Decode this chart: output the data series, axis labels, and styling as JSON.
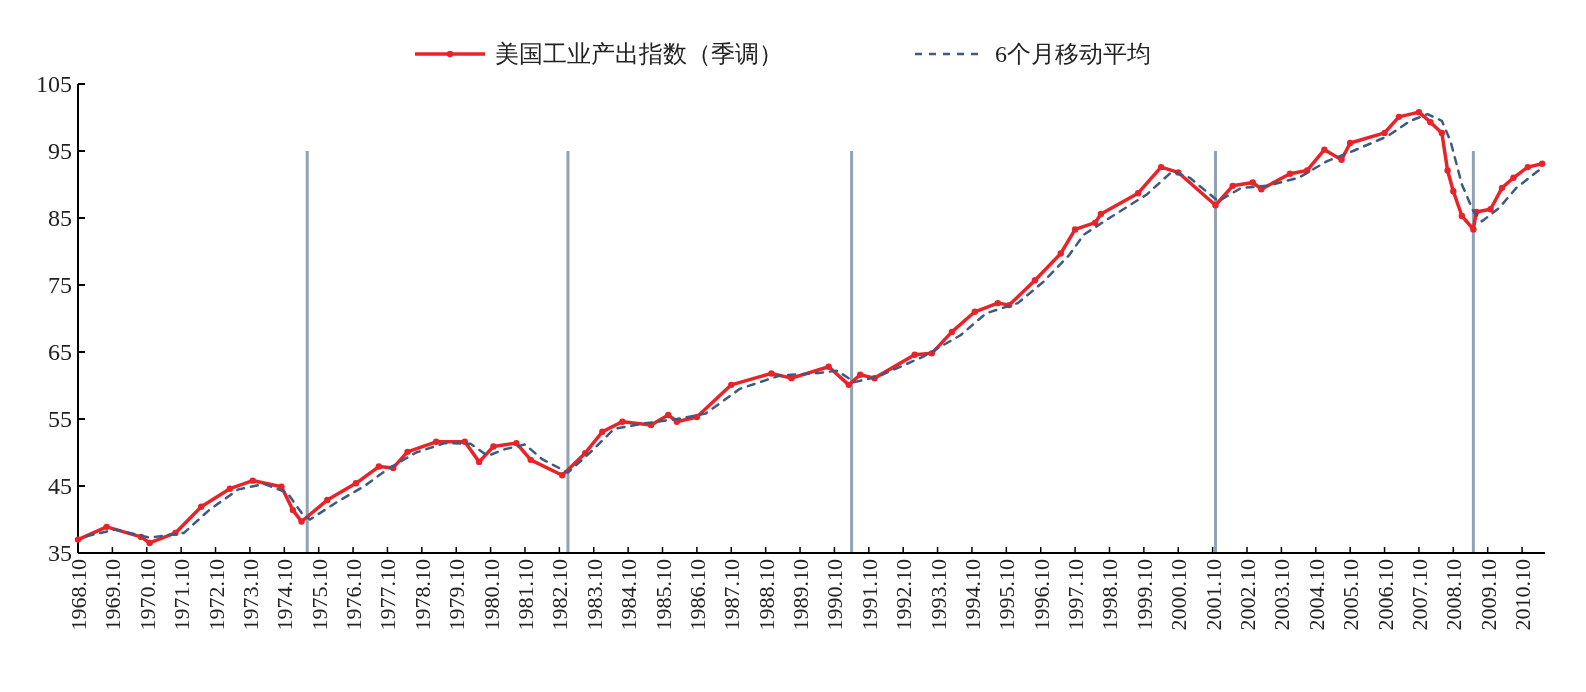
{
  "chart_data": {
    "type": "line",
    "xlim": [
      "1968-10",
      "2011-06"
    ],
    "xticks": [
      {
        "value": "1968-10",
        "label": "1968.10"
      },
      {
        "value": "1969-10",
        "label": "1969.10"
      },
      {
        "value": "1970-10",
        "label": "1970.10"
      },
      {
        "value": "1971-10",
        "label": "1971.10"
      },
      {
        "value": "1972-10",
        "label": "1972.10"
      },
      {
        "value": "1973-10",
        "label": "1973.10"
      },
      {
        "value": "1974-10",
        "label": "1974.10"
      },
      {
        "value": "1975-10",
        "label": "1975.10"
      },
      {
        "value": "1976-10",
        "label": "1976.10"
      },
      {
        "value": "1977-10",
        "label": "1977.10"
      },
      {
        "value": "1978-10",
        "label": "1978.10"
      },
      {
        "value": "1979-10",
        "label": "1979.10"
      },
      {
        "value": "1980-10",
        "label": "1980.10"
      },
      {
        "value": "1981-10",
        "label": "1981.10"
      },
      {
        "value": "1982-10",
        "label": "1982.10"
      },
      {
        "value": "1983-10",
        "label": "1983.10"
      },
      {
        "value": "1984-10",
        "label": "1984.10"
      },
      {
        "value": "1985-10",
        "label": "1985.10"
      },
      {
        "value": "1986-10",
        "label": "1986.10"
      },
      {
        "value": "1987-10",
        "label": "1987.10"
      },
      {
        "value": "1988-10",
        "label": "1988.10"
      },
      {
        "value": "1989-10",
        "label": "1989.10"
      },
      {
        "value": "1990-10",
        "label": "1990.10"
      },
      {
        "value": "1991-10",
        "label": "1991.10"
      },
      {
        "value": "1992-10",
        "label": "1992.10"
      },
      {
        "value": "1993-10",
        "label": "1993.10"
      },
      {
        "value": "1994-10",
        "label": "1994.10"
      },
      {
        "value": "1995-10",
        "label": "1995.10"
      },
      {
        "value": "1996-10",
        "label": "1996.10"
      },
      {
        "value": "1997-10",
        "label": "1997.10"
      },
      {
        "value": "1998-10",
        "label": "1998.10"
      },
      {
        "value": "1999-10",
        "label": "1999.10"
      },
      {
        "value": "2000-10",
        "label": "2000.10"
      },
      {
        "value": "2001-10",
        "label": "2001.10"
      },
      {
        "value": "2002-10",
        "label": "2002.10"
      },
      {
        "value": "2003-10",
        "label": "2003.10"
      },
      {
        "value": "2004-10",
        "label": "2004.10"
      },
      {
        "value": "2005-10",
        "label": "2005.10"
      },
      {
        "value": "2006-10",
        "label": "2006.10"
      },
      {
        "value": "2007-10",
        "label": "2007.10"
      },
      {
        "value": "2008-10",
        "label": "2008.10"
      },
      {
        "value": "2009-10",
        "label": "2009.10"
      },
      {
        "value": "2010-10",
        "label": "2010.10"
      }
    ],
    "ylim": [
      35,
      105
    ],
    "yticks": [
      35,
      45,
      55,
      65,
      75,
      85,
      95,
      105
    ],
    "grid": false,
    "legend": "top",
    "series": [
      {
        "name": "美国工业产出指数（季调）",
        "color": "#e8232a",
        "marker": "circle",
        "line_style": "solid",
        "x": [
          "1968-10",
          "1969-08",
          "1970-08",
          "1970-11",
          "1971-08",
          "1972-05",
          "1973-03",
          "1973-11",
          "1974-09",
          "1975-01",
          "1975-04",
          "1976-01",
          "1976-11",
          "1977-07",
          "1977-12",
          "1978-05",
          "1979-03",
          "1980-01",
          "1980-06",
          "1980-11",
          "1981-07",
          "1981-12",
          "1982-11",
          "1983-07",
          "1984-01",
          "1984-08",
          "1985-06",
          "1985-12",
          "1986-03",
          "1986-10",
          "1987-10",
          "1988-12",
          "1989-07",
          "1990-08",
          "1991-03",
          "1991-07",
          "1991-12",
          "1993-02",
          "1993-08",
          "1994-03",
          "1994-11",
          "1995-07",
          "1995-11",
          "1996-08",
          "1997-05",
          "1997-10",
          "1998-05",
          "1998-07",
          "1999-08",
          "2000-04",
          "2000-10",
          "2001-11",
          "2002-05",
          "2002-12",
          "2003-03",
          "2004-01",
          "2004-07",
          "2005-01",
          "2005-07",
          "2005-10",
          "2006-10",
          "2007-03",
          "2007-10",
          "2008-02",
          "2008-06",
          "2008-08",
          "2008-10",
          "2009-01",
          "2009-05",
          "2009-06",
          "2009-11",
          "2010-03",
          "2010-07",
          "2010-12",
          "2011-05"
        ],
        "values": [
          37.0,
          38.9,
          37.4,
          36.5,
          38.0,
          41.9,
          44.6,
          45.8,
          44.9,
          41.4,
          39.7,
          42.9,
          45.4,
          47.9,
          47.7,
          50.1,
          51.6,
          51.6,
          48.6,
          50.9,
          51.4,
          48.9,
          46.6,
          49.9,
          53.1,
          54.6,
          54.1,
          55.6,
          54.6,
          55.3,
          60.1,
          61.8,
          61.1,
          62.8,
          60.1,
          61.6,
          61.1,
          64.6,
          64.8,
          68.0,
          71.0,
          72.3,
          72.0,
          75.7,
          79.7,
          83.3,
          84.3,
          85.6,
          88.7,
          92.6,
          91.8,
          86.9,
          89.8,
          90.3,
          89.3,
          91.6,
          92.1,
          95.2,
          93.7,
          96.2,
          97.7,
          100.1,
          100.8,
          99.3,
          97.7,
          92.1,
          89.0,
          85.3,
          83.3,
          85.9,
          86.3,
          89.5,
          91.0,
          92.6,
          93.1
        ]
      },
      {
        "name": "6个月移动平均",
        "color": "#3d5a80",
        "marker": "none",
        "line_style": "dashed",
        "x": [
          "1969-01",
          "1969-11",
          "1970-11",
          "1971-11",
          "1972-08",
          "1973-06",
          "1974-03",
          "1974-11",
          "1975-04",
          "1975-07",
          "1976-04",
          "1977-02",
          "1977-10",
          "1978-08",
          "1979-06",
          "1980-03",
          "1980-09",
          "1981-03",
          "1981-10",
          "1982-04",
          "1983-01",
          "1983-10",
          "1984-05",
          "1985-03",
          "1986-03",
          "1987-01",
          "1988-01",
          "1989-03",
          "1990-03",
          "1990-11",
          "1991-05",
          "1992-01",
          "1993-05",
          "1994-06",
          "1995-03",
          "1996-02",
          "1996-11",
          "1997-08",
          "1998-01",
          "1998-10",
          "1999-11",
          "2000-08",
          "2001-02",
          "2001-12",
          "2002-08",
          "2003-05",
          "2004-04",
          "2005-02",
          "2005-11",
          "2006-11",
          "2007-07",
          "2008-01",
          "2008-06",
          "2008-09",
          "2009-01",
          "2009-05",
          "2009-08",
          "2010-02",
          "2010-08",
          "2011-05"
        ],
        "values": [
          37.5,
          38.5,
          37.3,
          38.0,
          41.5,
          44.5,
          45.3,
          44.0,
          41.0,
          40.0,
          42.5,
          45.0,
          47.5,
          50.0,
          51.4,
          51.3,
          49.5,
          50.5,
          51.2,
          49.0,
          47.0,
          50.5,
          53.5,
          54.3,
          55.0,
          55.8,
          59.5,
          61.5,
          61.8,
          62.2,
          60.5,
          61.3,
          64.3,
          67.5,
          70.8,
          72.3,
          75.5,
          79.5,
          82.5,
          85.0,
          88.5,
          92.0,
          91.0,
          87.5,
          89.5,
          89.8,
          91.0,
          93.5,
          95.0,
          97.2,
          99.5,
          100.5,
          99.5,
          96.5,
          90.0,
          86.0,
          84.5,
          86.5,
          89.5,
          92.5
        ]
      }
    ],
    "ref_lines": [
      {
        "axis": "x",
        "value": "1975-06",
        "color": "#8fa3b5"
      },
      {
        "axis": "x",
        "value": "1983-01",
        "color": "#8fa3b5"
      },
      {
        "axis": "x",
        "value": "1991-04",
        "color": "#8fa3b5"
      },
      {
        "axis": "x",
        "value": "2001-11",
        "color": "#8fa3b5"
      },
      {
        "axis": "x",
        "value": "2009-05",
        "color": "#8fa3b5"
      }
    ]
  }
}
